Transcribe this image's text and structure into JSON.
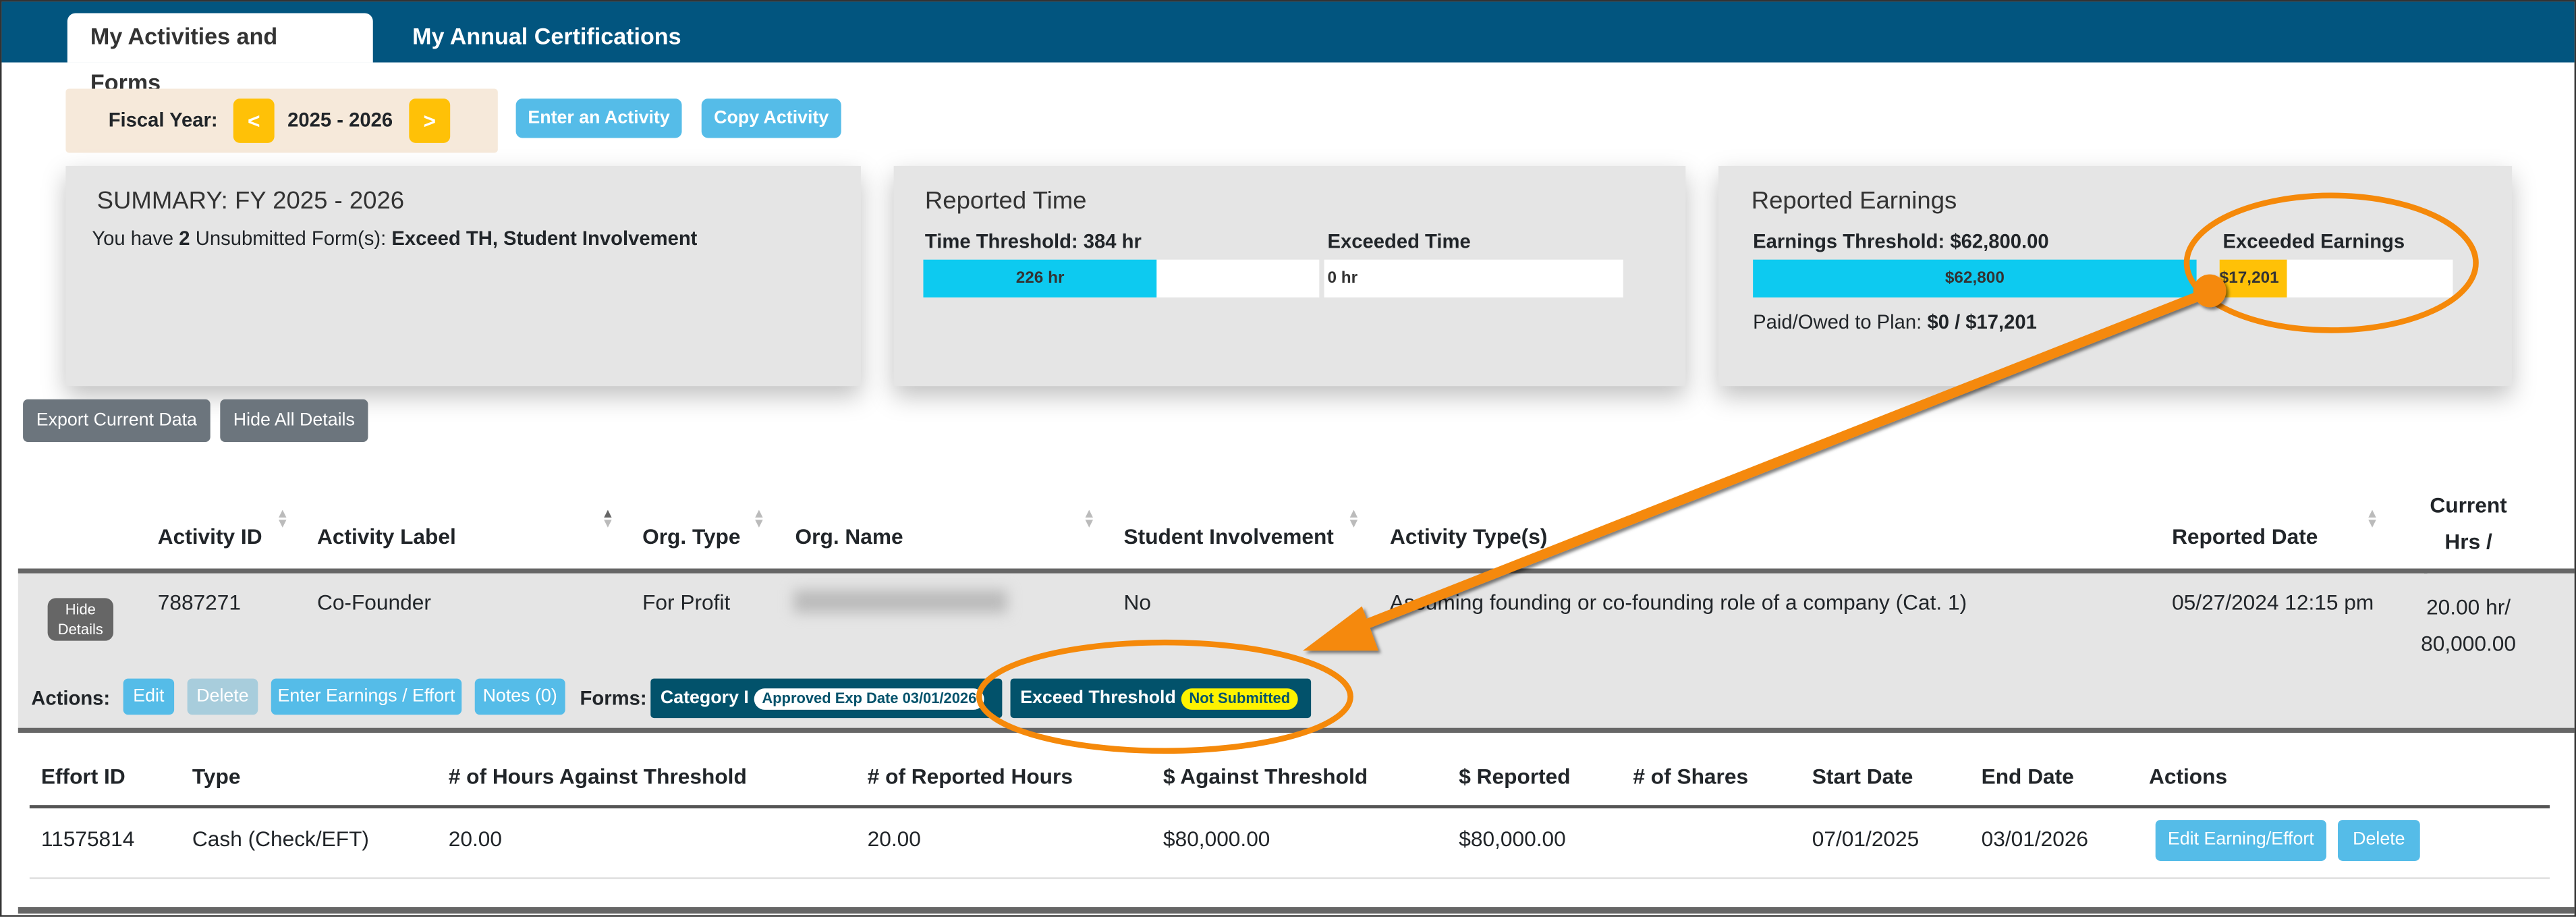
{
  "tabs": [
    {
      "label": "My Activities and Forms",
      "active": true
    },
    {
      "label": "My Annual Certifications",
      "active": false
    }
  ],
  "fiscal_year": {
    "label": "Fiscal Year:",
    "value": "2025 - 2026",
    "prev": "<",
    "next": ">"
  },
  "toolbar": {
    "enter_activity": "Enter an Activity",
    "copy_activity": "Copy Activity",
    "export": "Export Current Data",
    "hide_all": "Hide All Details"
  },
  "summary": {
    "title": "SUMMARY: FY 2025 - 2026",
    "prefix": "You have",
    "count": "2",
    "middle": "Unsubmitted Form(s):",
    "forms": "Exceed TH, Student Involvement"
  },
  "time": {
    "title": "Reported Time",
    "threshold_label": "Time Threshold: 384 hr",
    "bar_value": "226 hr",
    "fill_fraction": 0.59,
    "exceeded_label": "Exceeded Time",
    "exceeded_value": "0 hr"
  },
  "earnings": {
    "title": "Reported Earnings",
    "threshold_label": "Earnings Threshold: $62,800.00",
    "bar_value": "$62,800",
    "fill_fraction": 1.0,
    "exceeded_label": "Exceeded Earnings",
    "exceeded_value": "$17,201",
    "exceeded_fill_fraction": 0.29,
    "paid_label": "Paid/Owed to Plan:",
    "paid_value": "$0 / $17,201"
  },
  "activities": {
    "headers": [
      "Activity ID",
      "Activity Label",
      "Org. Type",
      "Org. Name",
      "Student Involvement",
      "Activity Type(s)",
      "Reported Date",
      "Current",
      "Hrs / Earnings"
    ],
    "row": {
      "hide_details": "Hide Details",
      "id": "7887271",
      "label": "Co-Founder",
      "org_type": "For Profit",
      "student_involvement": "No",
      "activity_type": "Assuming founding or co-founding role of a company (Cat. 1)",
      "reported_date": "05/27/2024 12:15 pm",
      "hrs": "20.00 hr/",
      "earnings": "80,000.00"
    },
    "actions_label": "Actions:",
    "actions": [
      "Edit",
      "Delete",
      "Enter Earnings / Effort",
      "Notes (0)"
    ],
    "forms_label": "Forms:",
    "forms": [
      {
        "name": "Category I",
        "status": "Approved Exp Date 03/01/2026"
      },
      {
        "name": "Exceed Threshold",
        "status": "Not Submitted"
      }
    ]
  },
  "efforts": {
    "headers": [
      "Effort ID",
      "Type",
      "# of Hours Against Threshold",
      "# of Reported Hours",
      "$ Against Threshold",
      "$ Reported",
      "# of Shares",
      "Start Date",
      "End Date",
      "Actions"
    ],
    "rows": [
      {
        "id": "11575814",
        "type": "Cash (Check/EFT)",
        "hours_against": "20.00",
        "reported_hours": "20.00",
        "dollars_against": "$80,000.00",
        "reported": "$80,000.00",
        "shares": "",
        "start": "07/01/2025",
        "end": "03/01/2026",
        "edit": "Edit Earning/Effort",
        "delete": "Delete"
      }
    ]
  },
  "colors": {
    "header": "#02557f",
    "accent_blue": "#55bce8",
    "cyan_bar": "#0dcaf0",
    "yellow": "#ffc107",
    "form_badge": "#02526b",
    "annotation": "#f5890a"
  }
}
